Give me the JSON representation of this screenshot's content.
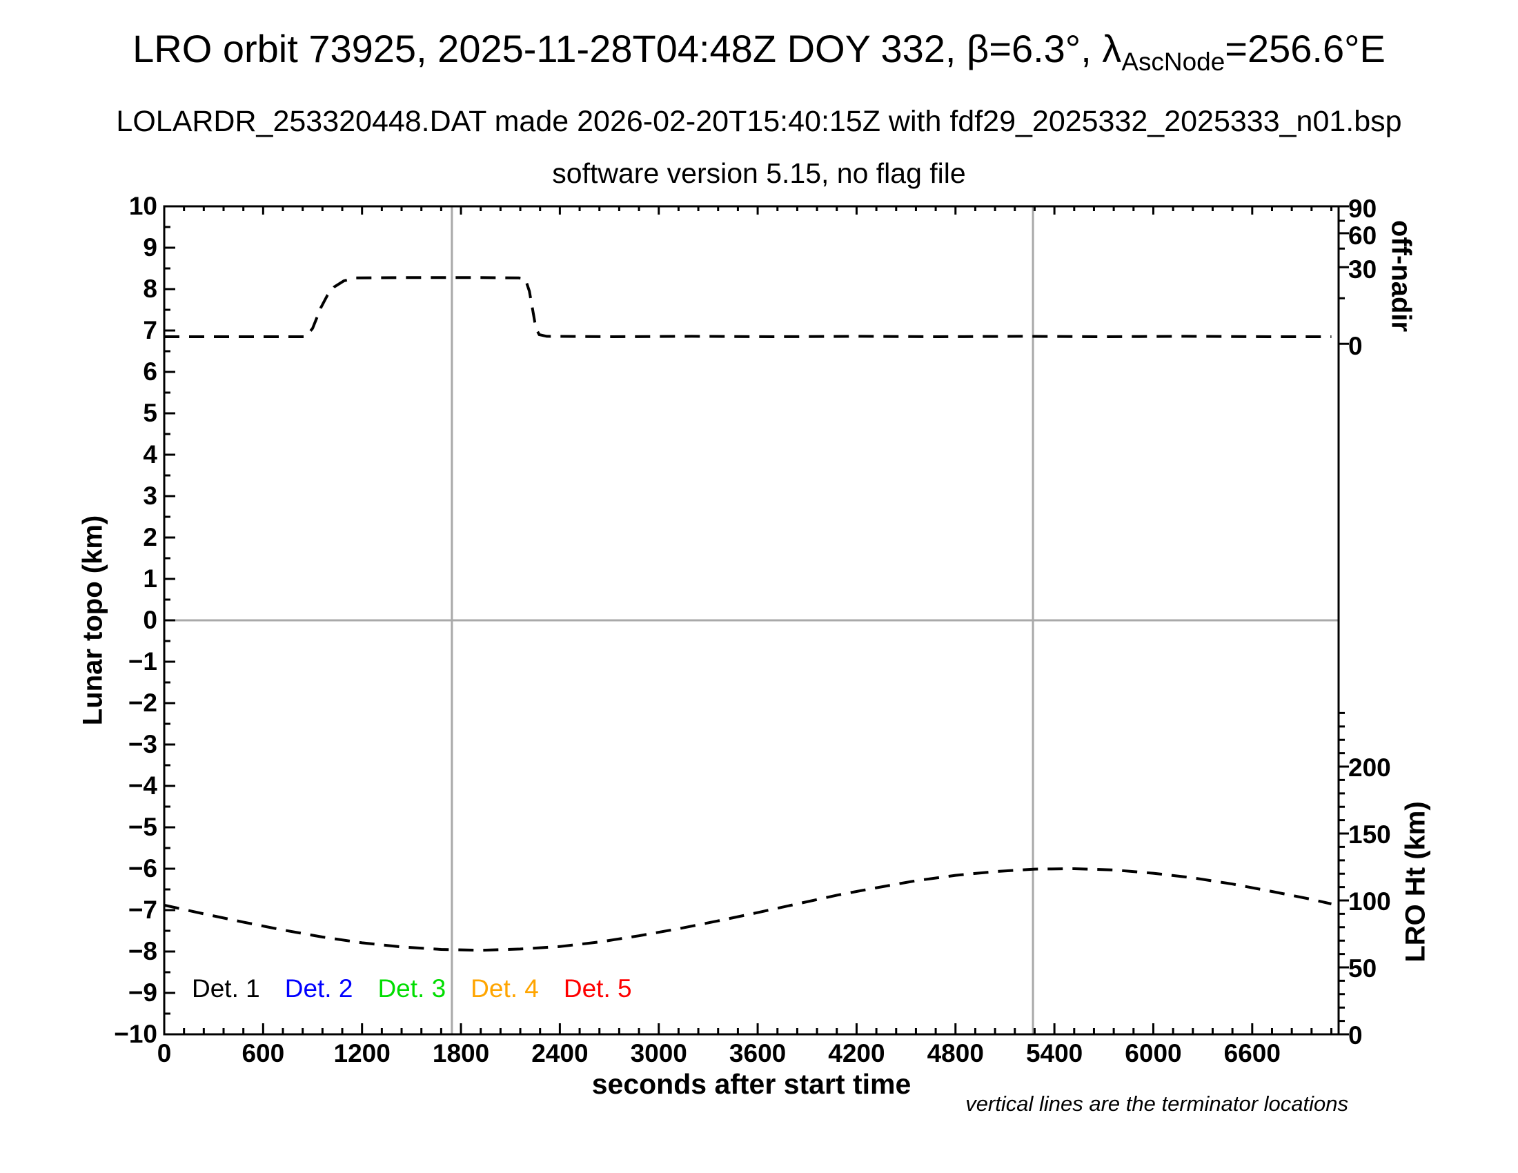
{
  "header": {
    "title_prefix": "LRO orbit 73925, 2025-11-28T04:48Z DOY 332, β=6.3°, λ",
    "title_subscript": "AscNode",
    "title_suffix": "=256.6°E",
    "subtitle": "LOLARDR_253320448.DAT made 2026-02-20T15:40:15Z with fdf29_2025332_2025333_n01.bsp",
    "subsubtitle": "software version 5.15, no flag file"
  },
  "footnote": "vertical lines are the terminator locations",
  "colors": {
    "curve": "#000000",
    "grid": "#a9a9a9",
    "frame": "#000000"
  },
  "axes": {
    "x": {
      "label": "seconds after start time",
      "min": 0,
      "max": 7124,
      "minor_step": 120,
      "major_step": 600,
      "ticks": [
        {
          "s": 0,
          "label": "0"
        },
        {
          "s": 600,
          "label": "600"
        },
        {
          "s": 1200,
          "label": "1200"
        },
        {
          "s": 1800,
          "label": "1800"
        },
        {
          "s": 2400,
          "label": "2400"
        },
        {
          "s": 3000,
          "label": "3000"
        },
        {
          "s": 3600,
          "label": "3600"
        },
        {
          "s": 4200,
          "label": "4200"
        },
        {
          "s": 4800,
          "label": "4800"
        },
        {
          "s": 5400,
          "label": "5400"
        },
        {
          "s": 6000,
          "label": "6000"
        },
        {
          "s": 6600,
          "label": "6600"
        }
      ]
    },
    "y_left": {
      "label": "Lunar topo (km)",
      "min": -10,
      "max": 10,
      "minor_step": 0.5,
      "ticks": [
        {
          "v": 10,
          "label": "10"
        },
        {
          "v": 9,
          "label": "9"
        },
        {
          "v": 8,
          "label": "8"
        },
        {
          "v": 7,
          "label": "7"
        },
        {
          "v": 6,
          "label": "6"
        },
        {
          "v": 5,
          "label": "5"
        },
        {
          "v": 4,
          "label": "4"
        },
        {
          "v": 3,
          "label": "3"
        },
        {
          "v": 2,
          "label": "2"
        },
        {
          "v": 1,
          "label": "1"
        },
        {
          "v": 0,
          "label": "0"
        },
        {
          "v": -1,
          "label": "−1"
        },
        {
          "v": -2,
          "label": "−2"
        },
        {
          "v": -3,
          "label": "−3"
        },
        {
          "v": -4,
          "label": "−4"
        },
        {
          "v": -5,
          "label": "−5"
        },
        {
          "v": -6,
          "label": "−6"
        },
        {
          "v": -7,
          "label": "−7"
        },
        {
          "v": -8,
          "label": "−8"
        },
        {
          "v": -9,
          "label": "−9"
        },
        {
          "v": -10,
          "label": "−10"
        }
      ]
    },
    "y_right_offnadir": {
      "label": "off-nadir",
      "ticks": [
        {
          "deg": 90,
          "label": "90",
          "topo": 10.0
        },
        {
          "deg": 60,
          "label": "60",
          "topo": 9.35
        },
        {
          "deg": 30,
          "label": "30",
          "topo": 8.53
        },
        {
          "deg": 0,
          "label": "0",
          "topo": 6.68
        }
      ],
      "minor_ticks_topo": [
        9.65,
        8.98,
        7.78
      ]
    },
    "y_right_lroht": {
      "label": "LRO Ht (km)",
      "km_per_topo_unit": 30.93,
      "minor_step_km": 10,
      "minor_max_km": 240,
      "ticks": [
        {
          "km": 200,
          "label": "200"
        },
        {
          "km": 150,
          "label": "150"
        },
        {
          "km": 100,
          "label": "100"
        },
        {
          "km": 50,
          "label": "50"
        },
        {
          "km": 0,
          "label": "0"
        }
      ]
    }
  },
  "legend": [
    {
      "label": "Det. 1",
      "color": "#000000"
    },
    {
      "label": "Det. 2",
      "color": "#0000ff"
    },
    {
      "label": "Det. 3",
      "color": "#00dd00"
    },
    {
      "label": "Det. 4",
      "color": "#ffa500"
    },
    {
      "label": "Det. 5",
      "color": "#ff0000"
    }
  ],
  "chart_data": {
    "type": "line",
    "title": "LRO orbit 73925, 2025-11-28T04:48Z DOY 332, β=6.3°, λ_AscNode=256.6°E",
    "xlabel": "seconds after start time",
    "ylabel_left": "Lunar topo (km)",
    "ylabel_right_top": "off-nadir",
    "ylabel_right_bottom": "LRO Ht (km)",
    "xlim": [
      0,
      7124
    ],
    "ylim_left": [
      -10,
      10
    ],
    "grid": "zero-line horizontal + terminator verticals only",
    "legend_position": "inside bottom-left",
    "terminator_lines_s": [
      1745,
      5270
    ],
    "series": [
      {
        "name": "off-nadir angle trace (dashed, upper)",
        "style": "black dashed",
        "units": "left-axis plot coordinates (km scale)",
        "approx_baseline_deg": 2,
        "approx_slew_plateau_deg": 25,
        "points": [
          [
            0,
            6.85
          ],
          [
            300,
            6.85
          ],
          [
            600,
            6.85
          ],
          [
            858,
            6.85
          ],
          [
            900,
            7.05
          ],
          [
            950,
            7.55
          ],
          [
            990,
            7.85
          ],
          [
            1030,
            8.05
          ],
          [
            1090,
            8.2
          ],
          [
            1160,
            8.27
          ],
          [
            1500,
            8.28
          ],
          [
            1900,
            8.28
          ],
          [
            2150,
            8.27
          ],
          [
            2190,
            8.25
          ],
          [
            2215,
            7.95
          ],
          [
            2235,
            7.5
          ],
          [
            2255,
            7.05
          ],
          [
            2275,
            6.9
          ],
          [
            2320,
            6.86
          ],
          [
            2700,
            6.85
          ],
          [
            3200,
            6.86
          ],
          [
            3700,
            6.85
          ],
          [
            4200,
            6.86
          ],
          [
            4700,
            6.85
          ],
          [
            5200,
            6.86
          ],
          [
            5700,
            6.85
          ],
          [
            6200,
            6.86
          ],
          [
            6700,
            6.85
          ],
          [
            7080,
            6.85
          ]
        ]
      },
      {
        "name": "LRO height trace (dashed, lower)",
        "style": "black dashed",
        "units": "left-axis plot coordinates (km scale)",
        "km_conversion": "LRO_Ht_km = (y + 10) * 30.93",
        "height_km_summary": {
          "start": 96,
          "min": 63,
          "min_at_s": 1900,
          "max": 123,
          "max_at_s": 5460,
          "end": 98
        },
        "points": [
          [
            0,
            -6.88
          ],
          [
            240,
            -7.09
          ],
          [
            480,
            -7.29
          ],
          [
            720,
            -7.48
          ],
          [
            960,
            -7.65
          ],
          [
            1200,
            -7.79
          ],
          [
            1440,
            -7.89
          ],
          [
            1680,
            -7.95
          ],
          [
            1920,
            -7.97
          ],
          [
            2160,
            -7.94
          ],
          [
            2400,
            -7.88
          ],
          [
            2640,
            -7.77
          ],
          [
            2880,
            -7.62
          ],
          [
            3120,
            -7.45
          ],
          [
            3360,
            -7.26
          ],
          [
            3600,
            -7.06
          ],
          [
            3840,
            -6.85
          ],
          [
            4080,
            -6.64
          ],
          [
            4320,
            -6.46
          ],
          [
            4560,
            -6.29
          ],
          [
            4800,
            -6.16
          ],
          [
            5040,
            -6.07
          ],
          [
            5280,
            -6.01
          ],
          [
            5520,
            -6.0
          ],
          [
            5760,
            -6.03
          ],
          [
            6000,
            -6.11
          ],
          [
            6240,
            -6.22
          ],
          [
            6480,
            -6.37
          ],
          [
            6720,
            -6.55
          ],
          [
            6960,
            -6.74
          ],
          [
            7080,
            -6.85
          ]
        ]
      }
    ]
  }
}
